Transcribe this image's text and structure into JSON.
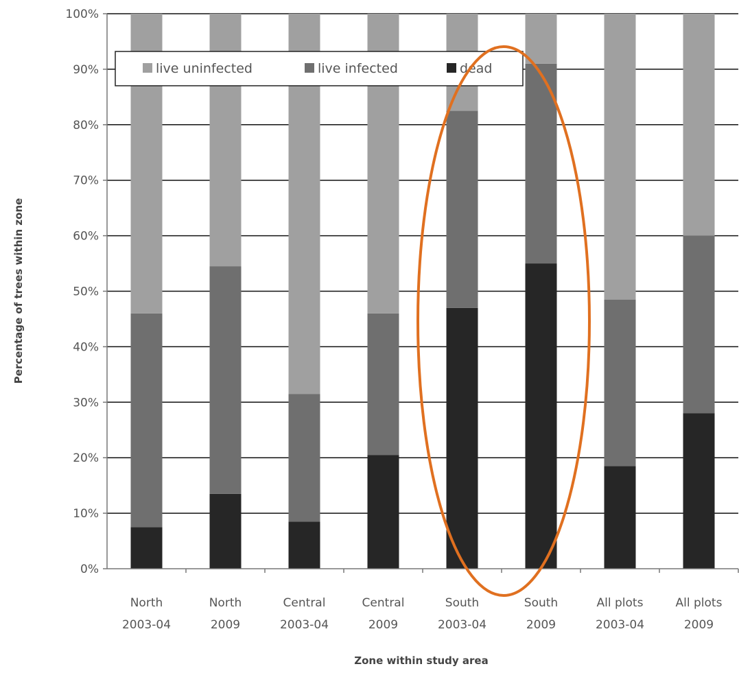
{
  "chart_data": {
    "type": "bar",
    "stacked": true,
    "title": "",
    "xlabel": "Zone within study area",
    "ylabel": "Percentage of trees within zone",
    "ylim": [
      0,
      100
    ],
    "y_tick_labels": [
      "0%",
      "10%",
      "20%",
      "30%",
      "40%",
      "50%",
      "60%",
      "70%",
      "80%",
      "90%",
      "100%"
    ],
    "categories": [
      [
        "North",
        "2003-04"
      ],
      [
        "North",
        "2009"
      ],
      [
        "Central",
        "2003-04"
      ],
      [
        "Central",
        "2009"
      ],
      [
        "South",
        "2003-04"
      ],
      [
        "South",
        "2009"
      ],
      [
        "All plots",
        "2003-04"
      ],
      [
        "All plots",
        "2009"
      ]
    ],
    "series": [
      {
        "name": "dead",
        "color": "#262626",
        "values": [
          7.5,
          13.5,
          8.5,
          20.5,
          47,
          55,
          18.5,
          28
        ]
      },
      {
        "name": "live infected",
        "color": "#6f6f6f",
        "values": [
          38.5,
          41,
          23,
          25.5,
          35.5,
          36,
          30,
          32
        ]
      },
      {
        "name": "live uninfected",
        "color": "#a0a0a0",
        "values": [
          54,
          45.5,
          68.5,
          54,
          17.5,
          9,
          51.5,
          40
        ]
      }
    ],
    "legend": {
      "position": "top-left",
      "order": [
        "live uninfected",
        "live infected",
        "dead"
      ]
    },
    "grid": true,
    "annotation": {
      "shape": "ellipse",
      "color": "#e07020",
      "highlights": [
        "South 2003-04",
        "South 2009"
      ]
    }
  }
}
